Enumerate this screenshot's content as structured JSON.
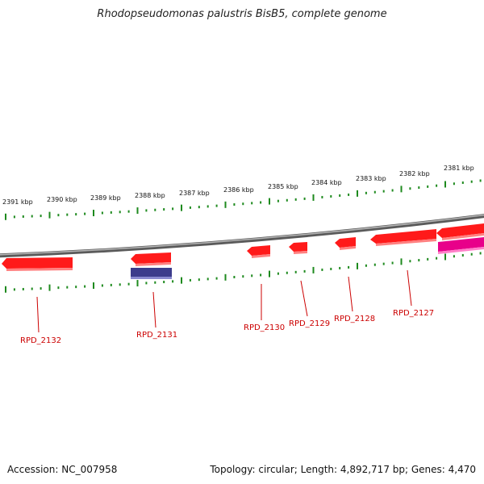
{
  "title": "Rhodopseudomonas palustris BisB5, complete genome",
  "footer": {
    "accession": "Accession: NC_007958",
    "summary": "Topology: circular; Length: 4,892,717 bp; Genes: 4,470"
  },
  "colors": {
    "background": "#ffffff",
    "backbone": "#8a8a8a",
    "ticks": "#1e8a1e",
    "gene_red": "#ff1a1a",
    "gene_magenta": "#e8008a",
    "gene_navy": "#3c3c8c",
    "label": "#cc0000"
  },
  "kbp_labels": [
    "2391 kbp",
    "2390 kbp",
    "2389 kbp",
    "2388 kbp",
    "2387 kbp",
    "2386 kbp",
    "2385 kbp",
    "2384 kbp",
    "2383 kbp",
    "2382 kbp",
    "2381 kbp"
  ],
  "gene_labels": [
    "RPD_2132",
    "RPD_2131",
    "RPD_2130",
    "RPD_2129",
    "RPD_2128",
    "RPD_2127"
  ]
}
